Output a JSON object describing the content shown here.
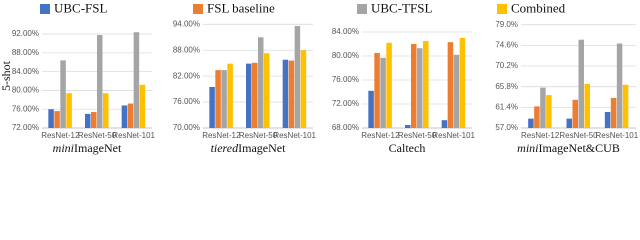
{
  "chart_data": [
    {
      "type": "bar",
      "ylabel": "5-shot",
      "legend": "top",
      "grid": true,
      "xlabel": [
        {
          "text": "mini",
          "italic": true
        },
        {
          "text": "ImageNet",
          "italic": false
        }
      ],
      "categories": [
        "ResNet-12",
        "ResNet-50",
        "ResNet-101"
      ],
      "series": [
        {
          "name": "UBC-FSL",
          "color": "#4472c4",
          "values": [
            76.0,
            75.0,
            76.8
          ]
        },
        {
          "name": "FSL baseline",
          "color": "#ed7d31",
          "values": [
            75.6,
            75.4,
            77.2
          ]
        },
        {
          "name": "UBC-TFSL",
          "color": "#a5a5a5",
          "values": [
            86.4,
            91.8,
            92.4
          ]
        },
        {
          "name": "Combined",
          "color": "#ffc000",
          "values": [
            79.4,
            79.4,
            81.2
          ]
        }
      ],
      "ylim": [
        72,
        95
      ],
      "yticks": [
        {
          "value": 72,
          "label": "72.00%"
        },
        {
          "value": 76,
          "label": "76.00%"
        },
        {
          "value": 80,
          "label": "80.00%"
        },
        {
          "value": 84,
          "label": "84.00%"
        },
        {
          "value": 88,
          "label": "88.00%"
        },
        {
          "value": 92,
          "label": "92.00%"
        }
      ]
    },
    {
      "type": "bar",
      "grid": true,
      "xlabel": [
        {
          "text": "tiered",
          "italic": true
        },
        {
          "text": "ImageNet",
          "italic": false
        }
      ],
      "categories": [
        "ResNet-12",
        "ResNet-50",
        "ResNet-101"
      ],
      "series": [
        {
          "color": "#4472c4",
          "values": [
            79.5,
            84.9,
            85.8
          ]
        },
        {
          "color": "#ed7d31",
          "values": [
            83.4,
            85.1,
            85.6
          ]
        },
        {
          "color": "#a5a5a5",
          "values": [
            83.4,
            91.0,
            93.6
          ]
        },
        {
          "color": "#ffc000",
          "values": [
            84.9,
            87.3,
            88.0
          ]
        }
      ],
      "ylim": [
        70,
        95
      ],
      "yticks": [
        {
          "value": 70,
          "label": "70.00%"
        },
        {
          "value": 76,
          "label": "76.00%"
        },
        {
          "value": 82,
          "label": "82.00%"
        },
        {
          "value": 88,
          "label": "88.00%"
        },
        {
          "value": 94,
          "label": "94.00%"
        }
      ]
    },
    {
      "type": "bar",
      "grid": true,
      "xlabel": [
        {
          "text": "Caltech",
          "italic": false
        }
      ],
      "categories": [
        "ResNet-12",
        "ResNet-50",
        "ResNet-101"
      ],
      "series": [
        {
          "color": "#4472c4",
          "values": [
            74.2,
            68.5,
            69.3
          ]
        },
        {
          "color": "#ed7d31",
          "values": [
            80.5,
            82.0,
            82.3
          ]
        },
        {
          "color": "#a5a5a5",
          "values": [
            79.7,
            81.3,
            80.2
          ]
        },
        {
          "color": "#ffc000",
          "values": [
            82.2,
            82.5,
            83.0
          ]
        }
      ],
      "ylim": [
        68,
        86
      ],
      "yticks": [
        {
          "value": 68,
          "label": "68.00%"
        },
        {
          "value": 72,
          "label": "72.00%"
        },
        {
          "value": 76,
          "label": "76.00%"
        },
        {
          "value": 80,
          "label": "80.00%"
        },
        {
          "value": 84,
          "label": "84.00%"
        }
      ]
    },
    {
      "type": "bar",
      "grid": true,
      "xlabel": [
        {
          "text": "mini",
          "italic": true
        },
        {
          "text": "ImageNet&CUB",
          "italic": false
        }
      ],
      "categories": [
        "ResNet-12",
        "ResNet-50",
        "ResNet-101"
      ],
      "series": [
        {
          "color": "#4472c4",
          "values": [
            59.0,
            59.0,
            60.4
          ]
        },
        {
          "color": "#ed7d31",
          "values": [
            61.6,
            63.0,
            63.4
          ]
        },
        {
          "color": "#a5a5a5",
          "values": [
            65.6,
            75.8,
            75.0
          ]
        },
        {
          "color": "#ffc000",
          "values": [
            64.0,
            66.4,
            66.2
          ]
        }
      ],
      "ylim": [
        57,
        80
      ],
      "yticks": [
        {
          "value": 57.0,
          "label": "57.0%"
        },
        {
          "value": 61.4,
          "label": "61.4%"
        },
        {
          "value": 65.8,
          "label": "65.8%"
        },
        {
          "value": 70.2,
          "label": "70.2%"
        },
        {
          "value": 74.6,
          "label": "74.6%"
        },
        {
          "value": 79.0,
          "label": "79.0%"
        }
      ]
    }
  ]
}
